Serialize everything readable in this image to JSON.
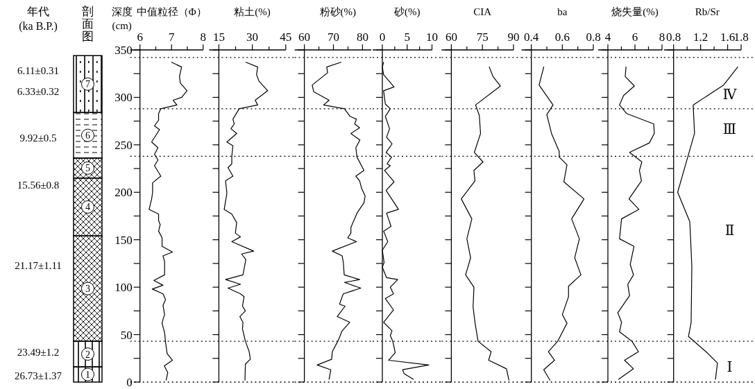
{
  "chart_data": [
    {
      "type": "bar",
      "title": "剖面图",
      "categories": [
        null
      ],
      "stacked": true,
      "ylim": [
        0,
        350
      ],
      "tick_labels": false,
      "series": [
        {
          "name": "1",
          "color": "#000000",
          "values": [
            16
          ]
        },
        {
          "name": "2",
          "color": "#000000",
          "values": [
            27
          ]
        },
        {
          "name": "3",
          "color": "#000000",
          "values": [
            111
          ]
        },
        {
          "name": "4",
          "color": "#000000",
          "values": [
            61
          ]
        },
        {
          "name": "5",
          "color": "#000000",
          "values": [
            21
          ]
        },
        {
          "name": "6",
          "color": "#000000",
          "values": [
            48
          ]
        },
        {
          "name": "7",
          "color": "#000000",
          "values": [
            60
          ]
        }
      ],
      "annotations": [
        "年代\n(ka B.P.)",
        "6.11±0.31",
        "6.33±0.32",
        "9.92±0.5",
        "15.56±0.8",
        "21.17±1.11",
        "23.49±1.2",
        "26.73±1.37"
      ]
    },
    {
      "type": "line",
      "title": "中值粒径（Φ）",
      "ylabel": "深度\n(cm)",
      "xlim": [
        6,
        8
      ],
      "xticks": [
        6,
        {
          "value": 6.5,
          "label": null
        },
        7,
        {
          "value": 7.5,
          "label": null
        },
        8
      ],
      "ylim": [
        0,
        350
      ],
      "yticks": [
        0,
        {
          "value": 25,
          "label": null
        },
        50,
        {
          "value": 75,
          "label": null
        },
        100,
        {
          "value": 125,
          "label": null
        },
        150,
        {
          "value": 175,
          "label": null
        },
        200,
        {
          "value": 225,
          "label": null
        },
        250,
        {
          "value": 275,
          "label": null
        },
        300,
        {
          "value": 325,
          "label": null
        },
        350
      ],
      "ref_lines": [
        {
          "axis": "y",
          "value": 342,
          "line_style": "dotted"
        },
        {
          "axis": "y",
          "value": 288,
          "line_style": "dotted"
        },
        {
          "axis": "y",
          "value": 238,
          "line_style": "dotted"
        },
        {
          "axis": "y",
          "value": 43,
          "line_style": "dotted"
        },
        {
          "axis": "y",
          "value": 0,
          "line_style": "dotted"
        }
      ],
      "series": [
        {
          "color": "#000000",
          "x": [
            7.0,
            7.32,
            7.25,
            7.28,
            7.49,
            7.32,
            7.05,
            7.17,
            6.66,
            6.59,
            6.59,
            6.46,
            6.62,
            6.37,
            6.57,
            6.46,
            6.57,
            6.46,
            6.66,
            6.4,
            6.4,
            6.37,
            6.29,
            6.59,
            6.59,
            6.64,
            6.59,
            6.7,
            6.7,
            7.03,
            6.73,
            6.78,
            6.78,
            6.44,
            6.73,
            6.39,
            6.73,
            6.81,
            6.73,
            6.78,
            6.73,
            6.7,
            6.78,
            6.81,
            6.86,
            7.03,
            6.77,
            6.88,
            6.83
          ],
          "values": [
            337,
            332,
            322,
            315,
            307,
            300,
            297,
            292,
            288,
            283,
            276,
            270,
            266,
            253,
            247,
            240,
            234,
            228,
            217,
            210,
            200,
            193,
            182,
            177,
            170,
            166,
            159,
            152,
            143,
            137,
            133,
            127,
            113,
            107,
            102,
            98,
            93,
            87,
            81,
            71,
            66,
            62,
            52,
            42,
            30,
            23,
            17,
            10,
            2
          ]
        }
      ]
    },
    {
      "type": "line",
      "title": "粘土(%)",
      "xlim": [
        15,
        45
      ],
      "xticks": [
        15,
        {
          "value": 22.5,
          "label": null
        },
        30,
        {
          "value": 37.5,
          "label": null
        },
        45
      ],
      "ylim": [
        0,
        350
      ],
      "yticks": [
        0,
        {
          "value": 25,
          "label": null
        },
        50,
        {
          "value": 75,
          "label": null
        },
        100,
        {
          "value": 125,
          "label": null
        },
        150,
        {
          "value": 175,
          "label": null
        },
        200,
        {
          "value": 225,
          "label": null
        },
        250,
        {
          "value": 275,
          "label": null
        },
        300,
        {
          "value": 325,
          "label": null
        },
        350
      ],
      "tick_labels": "x",
      "ref_lines": [
        {
          "axis": "y",
          "value": 342,
          "line_style": "dotted"
        },
        {
          "axis": "y",
          "value": 288,
          "line_style": "dotted"
        },
        {
          "axis": "y",
          "value": 238,
          "line_style": "dotted"
        },
        {
          "axis": "y",
          "value": 43,
          "line_style": "dotted"
        },
        {
          "axis": "y",
          "value": 0,
          "line_style": "dotted"
        }
      ],
      "series": [
        {
          "color": "#000000",
          "x": [
            27.1,
            32.4,
            31.9,
            33.0,
            36.9,
            31.3,
            32.4,
            24.1,
            21.3,
            21.9,
            20.4,
            23.0,
            18.6,
            21.3,
            20.8,
            20.8,
            19.1,
            21.3,
            18.0,
            18.6,
            17.4,
            20.8,
            23.0,
            22.4,
            24.7,
            20.8,
            30.6,
            25.2,
            27.1,
            25.8,
            18.0,
            24.7,
            19.1,
            24.7,
            26.3,
            25.6,
            26.9,
            24.4,
            25.8,
            25.6,
            26.9,
            28.6,
            29.1,
            26.9,
            26.7
          ],
          "values": [
            337,
            332,
            324,
            317,
            307,
            297,
            292,
            288,
            277,
            272,
            267,
            262,
            253,
            249,
            238,
            230,
            226,
            217,
            212,
            199,
            182,
            177,
            168,
            157,
            153,
            148,
            138,
            135,
            129,
            113,
            108,
            103,
            99,
            93,
            90,
            80,
            75,
            69,
            63,
            56,
            43,
            32,
            24,
            19,
            2
          ]
        }
      ]
    },
    {
      "type": "line",
      "title": "粉砂(%)",
      "xlim": [
        60,
        83
      ],
      "xticks": [
        60,
        {
          "value": 65,
          "label": null
        },
        70,
        {
          "value": 75,
          "label": null
        },
        80
      ],
      "ylim": [
        0,
        350
      ],
      "yticks": [
        0,
        {
          "value": 25,
          "label": null
        },
        50,
        {
          "value": 75,
          "label": null
        },
        100,
        {
          "value": 125,
          "label": null
        },
        150,
        {
          "value": 175,
          "label": null
        },
        200,
        {
          "value": 225,
          "label": null
        },
        250,
        {
          "value": 275,
          "label": null
        },
        300,
        {
          "value": 325,
          "label": null
        },
        350
      ],
      "tick_labels": "x",
      "ref_lines": [
        {
          "axis": "y",
          "value": 342,
          "line_style": "dotted"
        },
        {
          "axis": "y",
          "value": 288,
          "line_style": "dotted"
        },
        {
          "axis": "y",
          "value": 238,
          "line_style": "dotted"
        },
        {
          "axis": "y",
          "value": 43,
          "line_style": "dotted"
        },
        {
          "axis": "y",
          "value": 0,
          "line_style": "dotted"
        }
      ],
      "series": [
        {
          "color": "#000000",
          "x": [
            72.6,
            67.7,
            68.0,
            62.7,
            63.2,
            68.5,
            66.6,
            73.8,
            75.7,
            77.9,
            77.3,
            79.0,
            76.0,
            79.1,
            77.7,
            78.1,
            80.5,
            77.7,
            79.0,
            79.7,
            80.9,
            80.5,
            78.1,
            76.0,
            76.0,
            74.9,
            77.9,
            69.6,
            73.0,
            73.4,
            73.7,
            79.0,
            73.8,
            79.4,
            73.4,
            73.0,
            72.1,
            74.0,
            71.3,
            75.6,
            73.0,
            71.5,
            69.6,
            69.4,
            64.4,
            69.1,
            68.5
          ],
          "values": [
            337,
            332,
            326,
            313,
            306,
            297,
            292,
            288,
            280,
            277,
            272,
            268,
            262,
            255,
            247,
            237,
            223,
            217,
            212,
            204,
            196,
            189,
            178,
            163,
            157,
            152,
            148,
            138,
            133,
            126,
            113,
            108,
            105,
            99,
            93,
            90,
            82,
            80,
            69,
            63,
            54,
            43,
            32,
            24,
            18,
            13,
            3
          ]
        }
      ]
    },
    {
      "type": "line",
      "title": "砂(%)",
      "xlim": [
        0,
        10
      ],
      "xticks": [
        0,
        {
          "value": 2.5,
          "label": null
        },
        5,
        {
          "value": 7.5,
          "label": null
        },
        10
      ],
      "ylim": [
        0,
        350
      ],
      "yticks": [
        0,
        {
          "value": 25,
          "label": null
        },
        50,
        {
          "value": 75,
          "label": null
        },
        100,
        {
          "value": 125,
          "label": null
        },
        150,
        {
          "value": 175,
          "label": null
        },
        200,
        {
          "value": 225,
          "label": null
        },
        250,
        {
          "value": 275,
          "label": null
        },
        300,
        {
          "value": 325,
          "label": null
        },
        350
      ],
      "tick_labels": "x",
      "ref_lines": [
        {
          "axis": "y",
          "value": 342,
          "line_style": "dotted"
        },
        {
          "axis": "y",
          "value": 288,
          "line_style": "dotted"
        },
        {
          "axis": "y",
          "value": 238,
          "line_style": "dotted"
        },
        {
          "axis": "y",
          "value": 43,
          "line_style": "dotted"
        },
        {
          "axis": "y",
          "value": 0,
          "line_style": "dotted"
        }
      ],
      "series": [
        {
          "color": "#000000",
          "x": [
            0.25,
            0,
            0.25,
            2.35,
            0.25,
            0.6,
            1.6,
            0.6,
            1.45,
            0.85,
            1.95,
            0.75,
            1.85,
            0.95,
            1.6,
            0.45,
            2.35,
            0.75,
            3.25,
            0.85,
            1.75,
            0.25,
            1.1,
            0,
            0.35,
            0,
            0.85,
            3.1,
            1.6,
            2.25,
            0.6,
            2.25,
            0.25,
            1.95,
            1.6,
            2.1,
            2.6,
            1.25,
            9.35,
            4.1,
            4.35,
            6.25
          ],
          "values": [
            337,
            332,
            324,
            311,
            307,
            293,
            288,
            280,
            267,
            258,
            251,
            242,
            237,
            230,
            228,
            223,
            211,
            202,
            182,
            178,
            164,
            159,
            148,
            139,
            126,
            121,
            110,
            108,
            100,
            93,
            88,
            76,
            63,
            54,
            49,
            43,
            31,
            23,
            18,
            13,
            9,
            3
          ]
        }
      ]
    },
    {
      "type": "line",
      "title": "CIA",
      "xlim": [
        60,
        90
      ],
      "xticks": [
        60,
        {
          "value": 67.5,
          "label": null
        },
        75,
        {
          "value": 82.5,
          "label": null
        },
        90
      ],
      "ylim": [
        0,
        350
      ],
      "yticks": [
        0,
        {
          "value": 25,
          "label": null
        },
        50,
        {
          "value": 75,
          "label": null
        },
        100,
        {
          "value": 125,
          "label": null
        },
        150,
        {
          "value": 175,
          "label": null
        },
        200,
        {
          "value": 225,
          "label": null
        },
        250,
        {
          "value": 275,
          "label": null
        },
        300,
        {
          "value": 325,
          "label": null
        },
        350
      ],
      "tick_labels": "x",
      "ref_lines": [
        {
          "axis": "y",
          "value": 342,
          "line_style": "dotted"
        },
        {
          "axis": "y",
          "value": 288,
          "line_style": "dotted"
        },
        {
          "axis": "y",
          "value": 238,
          "line_style": "dotted"
        },
        {
          "axis": "y",
          "value": 43,
          "line_style": "dotted"
        },
        {
          "axis": "y",
          "value": 0,
          "line_style": "dotted"
        }
      ],
      "series": [
        {
          "color": "#000000",
          "x": [
            78.3,
            80.1,
            83.7,
            71.7,
            73.5,
            74.1,
            71.1,
            75.3,
            70.9,
            71.4,
            64.8,
            69.9,
            67.5,
            69.3,
            66.9,
            70.9,
            70.5,
            71.4,
            72.9,
            79.2,
            78.0,
            86.6,
            87.8
          ],
          "values": [
            332,
            322,
            312,
            292,
            281,
            262,
            242,
            232,
            223,
            212,
            193,
            172,
            151,
            131,
            113,
            100,
            79,
            63,
            43,
            32,
            23,
            14,
            2
          ]
        }
      ]
    },
    {
      "type": "line",
      "title": "ba",
      "xlim": [
        0.4,
        0.8
      ],
      "xticks": [
        0.4,
        {
          "value": 0.5,
          "label": null
        },
        0.6,
        {
          "value": 0.7,
          "label": null
        },
        0.8
      ],
      "ylim": [
        0,
        350
      ],
      "yticks": [
        0,
        {
          "value": 25,
          "label": null
        },
        50,
        {
          "value": 75,
          "label": null
        },
        100,
        {
          "value": 125,
          "label": null
        },
        150,
        {
          "value": 175,
          "label": null
        },
        200,
        {
          "value": 225,
          "label": null
        },
        250,
        {
          "value": 275,
          "label": null
        },
        300,
        {
          "value": 325,
          "label": null
        },
        350
      ],
      "tick_labels": "x",
      "ref_lines": [
        {
          "axis": "y",
          "value": 342,
          "line_style": "dotted"
        },
        {
          "axis": "y",
          "value": 288,
          "line_style": "dotted"
        },
        {
          "axis": "y",
          "value": 238,
          "line_style": "dotted"
        },
        {
          "axis": "y",
          "value": 43,
          "line_style": "dotted"
        },
        {
          "axis": "y",
          "value": 0,
          "line_style": "dotted"
        }
      ],
      "series": [
        {
          "color": "#000000",
          "x": [
            0.48,
            0.45,
            0.54,
            0.5,
            0.53,
            0.58,
            0.58,
            0.63,
            0.61,
            0.74,
            0.66,
            0.71,
            0.68,
            0.72,
            0.64,
            0.64,
            0.6,
            0.63,
            0.57,
            0.51,
            0.55,
            0.48,
            0.52
          ],
          "values": [
            332,
            313,
            292,
            282,
            262,
            243,
            237,
            229,
            211,
            193,
            172,
            151,
            131,
            113,
            101,
            90,
            71,
            62,
            43,
            32,
            23,
            13,
            2
          ]
        }
      ]
    },
    {
      "type": "line",
      "title": "烧失量(%)",
      "xlim": [
        4,
        8
      ],
      "xticks": [
        4,
        {
          "value": 5,
          "label": null
        },
        6,
        {
          "value": 7,
          "label": null
        },
        8
      ],
      "ylim": [
        0,
        350
      ],
      "yticks": [
        0,
        {
          "value": 25,
          "label": null
        },
        50,
        {
          "value": 75,
          "label": null
        },
        100,
        {
          "value": 125,
          "label": null
        },
        150,
        {
          "value": 175,
          "label": null
        },
        200,
        {
          "value": 225,
          "label": null
        },
        250,
        {
          "value": 275,
          "label": null
        },
        300,
        {
          "value": 325,
          "label": null
        },
        350
      ],
      "tick_labels": "x",
      "ref_lines": [
        {
          "axis": "y",
          "value": 342,
          "line_style": "dotted"
        },
        {
          "axis": "y",
          "value": 288,
          "line_style": "dotted"
        },
        {
          "axis": "y",
          "value": 238,
          "line_style": "dotted"
        },
        {
          "axis": "y",
          "value": 43,
          "line_style": "dotted"
        },
        {
          "axis": "y",
          "value": 0,
          "line_style": "dotted"
        }
      ],
      "series": [
        {
          "color": "#000000",
          "x": [
            5.34,
            5.28,
            5.96,
            5.16,
            4.86,
            5.38,
            7.39,
            7.43,
            7.06,
            5.6,
            6.51,
            6.33,
            6.48,
            5.56,
            6.29,
            5.01,
            4.86,
            5.93,
            5.65,
            5.89,
            5.47,
            5.6,
            4.73,
            5.01,
            4.86,
            5.78,
            6.26,
            5.23,
            5.89,
            4.79
          ],
          "values": [
            332,
            322,
            312,
            302,
            292,
            283,
            272,
            262,
            252,
            242,
            232,
            223,
            212,
            193,
            182,
            172,
            151,
            143,
            124,
            113,
            103,
            91,
            73,
            63,
            53,
            43,
            32,
            23,
            14,
            3
          ]
        }
      ]
    },
    {
      "type": "line",
      "title": "Rb/Sr",
      "xlim": [
        0.8,
        1.8
      ],
      "xticks": [
        0.8,
        {
          "value": 1.0,
          "label": null
        },
        1.2,
        {
          "value": 1.4,
          "label": null
        },
        1.6,
        1.8
      ],
      "ylim": [
        0,
        350
      ],
      "yticks": [
        0,
        {
          "value": 25,
          "label": null
        },
        50,
        {
          "value": 75,
          "label": null
        },
        100,
        {
          "value": 125,
          "label": null
        },
        150,
        {
          "value": 175,
          "label": null
        },
        200,
        {
          "value": 225,
          "label": null
        },
        250,
        {
          "value": 275,
          "label": null
        },
        300,
        {
          "value": 325,
          "label": null
        },
        350
      ],
      "tick_labels": "x",
      "ref_lines": [
        {
          "axis": "y",
          "value": 342,
          "line_style": "dotted"
        },
        {
          "axis": "y",
          "value": 288,
          "line_style": "dotted"
        },
        {
          "axis": "y",
          "value": 238,
          "line_style": "dotted"
        },
        {
          "axis": "y",
          "value": 43,
          "line_style": "dotted"
        },
        {
          "axis": "y",
          "value": 0,
          "line_style": "dotted"
        }
      ],
      "series": [
        {
          "color": "#000000",
          "x": [
            1.75,
            1.54,
            1.09,
            1.11,
            0.86,
            1.04,
            1.07,
            1.06,
            1.02,
            1.28,
            1.45,
            1.42
          ],
          "values": [
            332,
            313,
            292,
            262,
            200,
            169,
            122,
            63,
            48,
            32,
            20,
            3
          ]
        }
      ],
      "annotations": [
        "Ⅳ",
        "Ⅲ",
        "Ⅱ",
        "Ⅰ"
      ]
    }
  ]
}
